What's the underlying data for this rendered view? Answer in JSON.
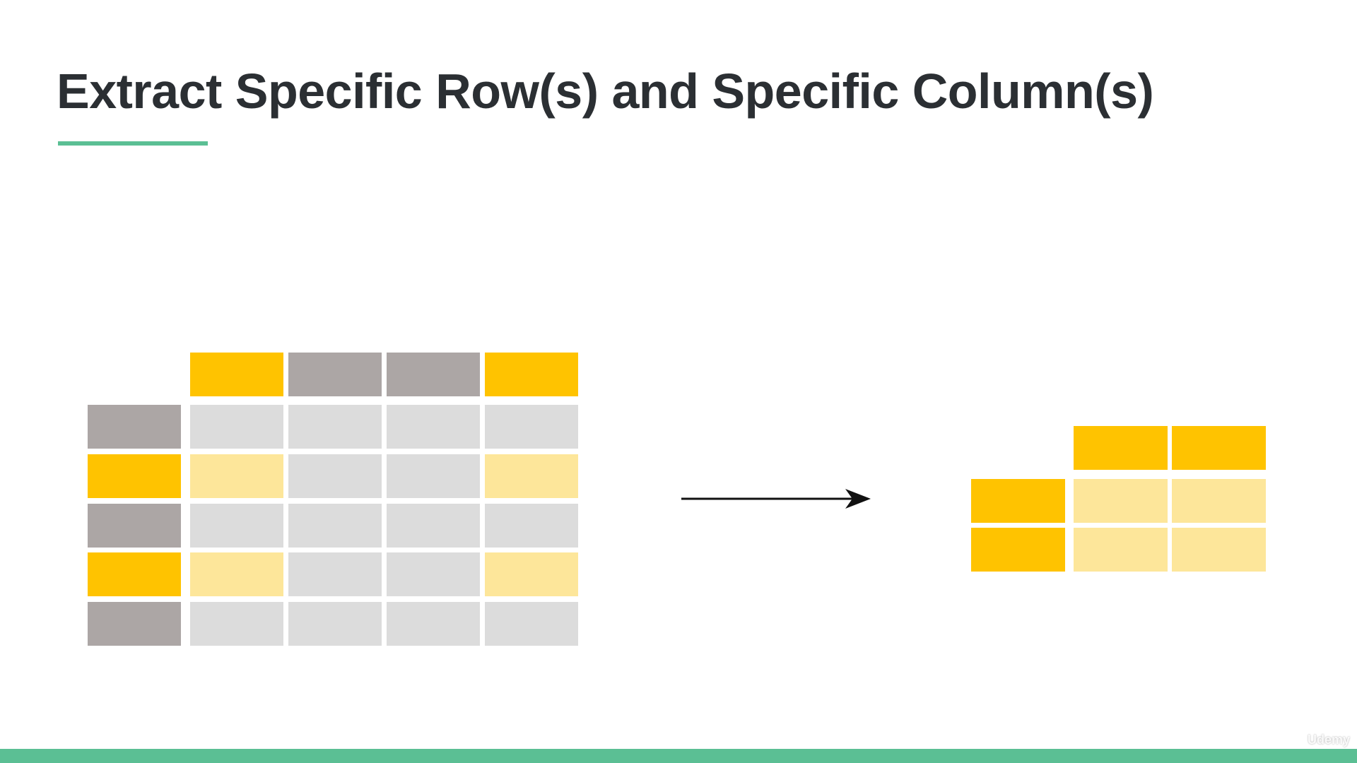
{
  "slide": {
    "title": "Extract Specific Row(s) and Specific Column(s)"
  },
  "colors": {
    "accent": "#5bbf94",
    "highlight": "#ffc300",
    "highlight_light": "#fde69a",
    "header_gray": "#aca6a5",
    "cell_gray": "#dcdcdc"
  },
  "diagram": {
    "source_table": {
      "columns": 4,
      "rows": 5,
      "selected_columns": [
        0,
        3
      ],
      "selected_rows": [
        1,
        3
      ]
    },
    "result_table": {
      "columns": 2,
      "rows": 2
    }
  },
  "icons": {
    "arrow": "arrow-right-icon",
    "logo": "udemy-logo-icon"
  },
  "watermark": "Udemy"
}
